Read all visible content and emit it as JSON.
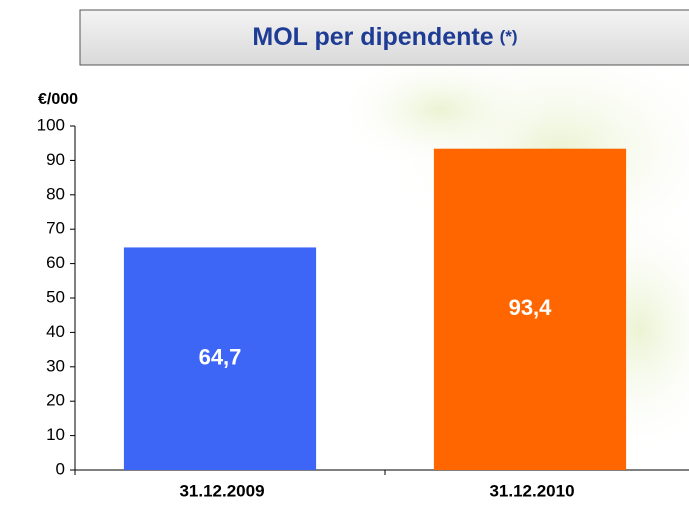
{
  "chart_data": {
    "type": "bar",
    "title": "MOL per dipendente",
    "title_note": "(*)",
    "y_label": "€/000",
    "categories": [
      "31.12.2009",
      "31.12.2010"
    ],
    "values": [
      64.7,
      93.4
    ],
    "value_labels": [
      "64,7",
      "93,4"
    ],
    "colors": [
      "#3d66f6",
      "#ff6600"
    ],
    "ylim": [
      0,
      100
    ],
    "yticks": [
      0,
      10,
      20,
      30,
      40,
      50,
      60,
      70,
      80,
      90,
      100
    ]
  }
}
